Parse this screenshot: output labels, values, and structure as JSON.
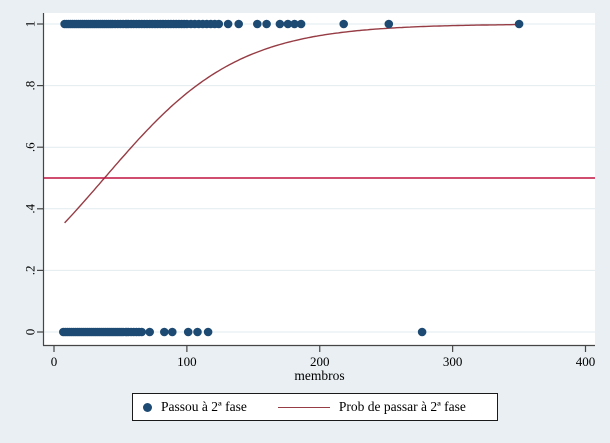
{
  "figure": {
    "background_color": "#e9eff2",
    "plot_background_color": "#ffffff",
    "gridline_color": "#e2ebef",
    "axis_color": "#454545",
    "legend": {
      "items": [
        {
          "marker": "dot-icon",
          "label": "Passou à 2ª fase",
          "color": "#1d4a73"
        },
        {
          "marker": "line-icon",
          "label": "Prob de passar à 2ª fase",
          "color": "#963c44"
        }
      ]
    }
  },
  "chart_data": {
    "type": "scatter",
    "title": "",
    "xlabel": "membros",
    "ylabel": "",
    "xlim": [
      -8,
      408
    ],
    "ylim": [
      -0.042,
      1.036
    ],
    "grid": "horizontal",
    "legend_position": "bottom-center",
    "x_ticks": [
      {
        "value": 0,
        "label": "0"
      },
      {
        "value": 100,
        "label": "100"
      },
      {
        "value": 200,
        "label": "200"
      },
      {
        "value": 300,
        "label": "300"
      },
      {
        "value": 400,
        "label": "400"
      }
    ],
    "y_ticks": [
      {
        "value": 0,
        "label": "0"
      },
      {
        "value": 0.2,
        "label": ".2"
      },
      {
        "value": 0.4,
        "label": ".4"
      },
      {
        "value": 0.6,
        "label": ".6"
      },
      {
        "value": 0.8,
        "label": ".8"
      },
      {
        "value": 1,
        "label": "1"
      }
    ],
    "series": [
      {
        "name": "Passou à 2ª fase (y=1)",
        "type": "scatter",
        "color": "#1d4a73",
        "marker_radius_px": 4.3,
        "y": 1,
        "x": [
          8,
          9.5,
          11,
          12.5,
          14,
          15.5,
          17,
          18.5,
          20,
          21.5,
          23,
          24.5,
          26,
          27.5,
          29,
          30.5,
          32,
          33.5,
          35,
          36.5,
          38,
          39.5,
          41,
          42.5,
          44,
          46,
          48,
          50,
          52,
          54,
          56,
          58,
          60,
          62,
          64,
          66,
          68,
          70,
          72,
          74,
          76,
          78,
          80,
          82,
          84,
          86,
          88,
          90,
          92,
          94,
          96,
          98,
          100,
          103,
          106,
          109,
          112,
          115,
          118,
          121,
          124,
          131,
          139,
          153,
          160,
          170,
          176,
          181,
          186,
          218,
          252,
          350
        ]
      },
      {
        "name": "Passou à 2ª fase (y=0)",
        "type": "scatter",
        "color": "#1d4a73",
        "marker_radius_px": 4.3,
        "y": 0,
        "x": [
          7,
          8.5,
          10,
          11.5,
          13,
          14.5,
          16,
          17.5,
          19,
          20.5,
          22,
          23.5,
          25,
          26.5,
          28,
          29.5,
          31,
          32.5,
          34,
          35.5,
          37,
          38.5,
          40,
          41.5,
          43,
          44.5,
          46,
          47.5,
          49,
          50.5,
          52,
          54,
          56,
          58,
          60,
          62,
          64,
          66,
          72,
          83,
          89,
          101,
          108,
          116,
          277
        ]
      },
      {
        "name": "Prob de passar à 2ª fase",
        "type": "logistic_curve",
        "model": "p = 1/(1+exp(-(b0+b1*x)))",
        "b0": -0.76,
        "b1": 0.02,
        "x_range": [
          8,
          350
        ],
        "color": "#963c44"
      },
      {
        "name": "reference-line",
        "type": "hline",
        "y": 0.5,
        "color": "#c11240"
      }
    ]
  }
}
